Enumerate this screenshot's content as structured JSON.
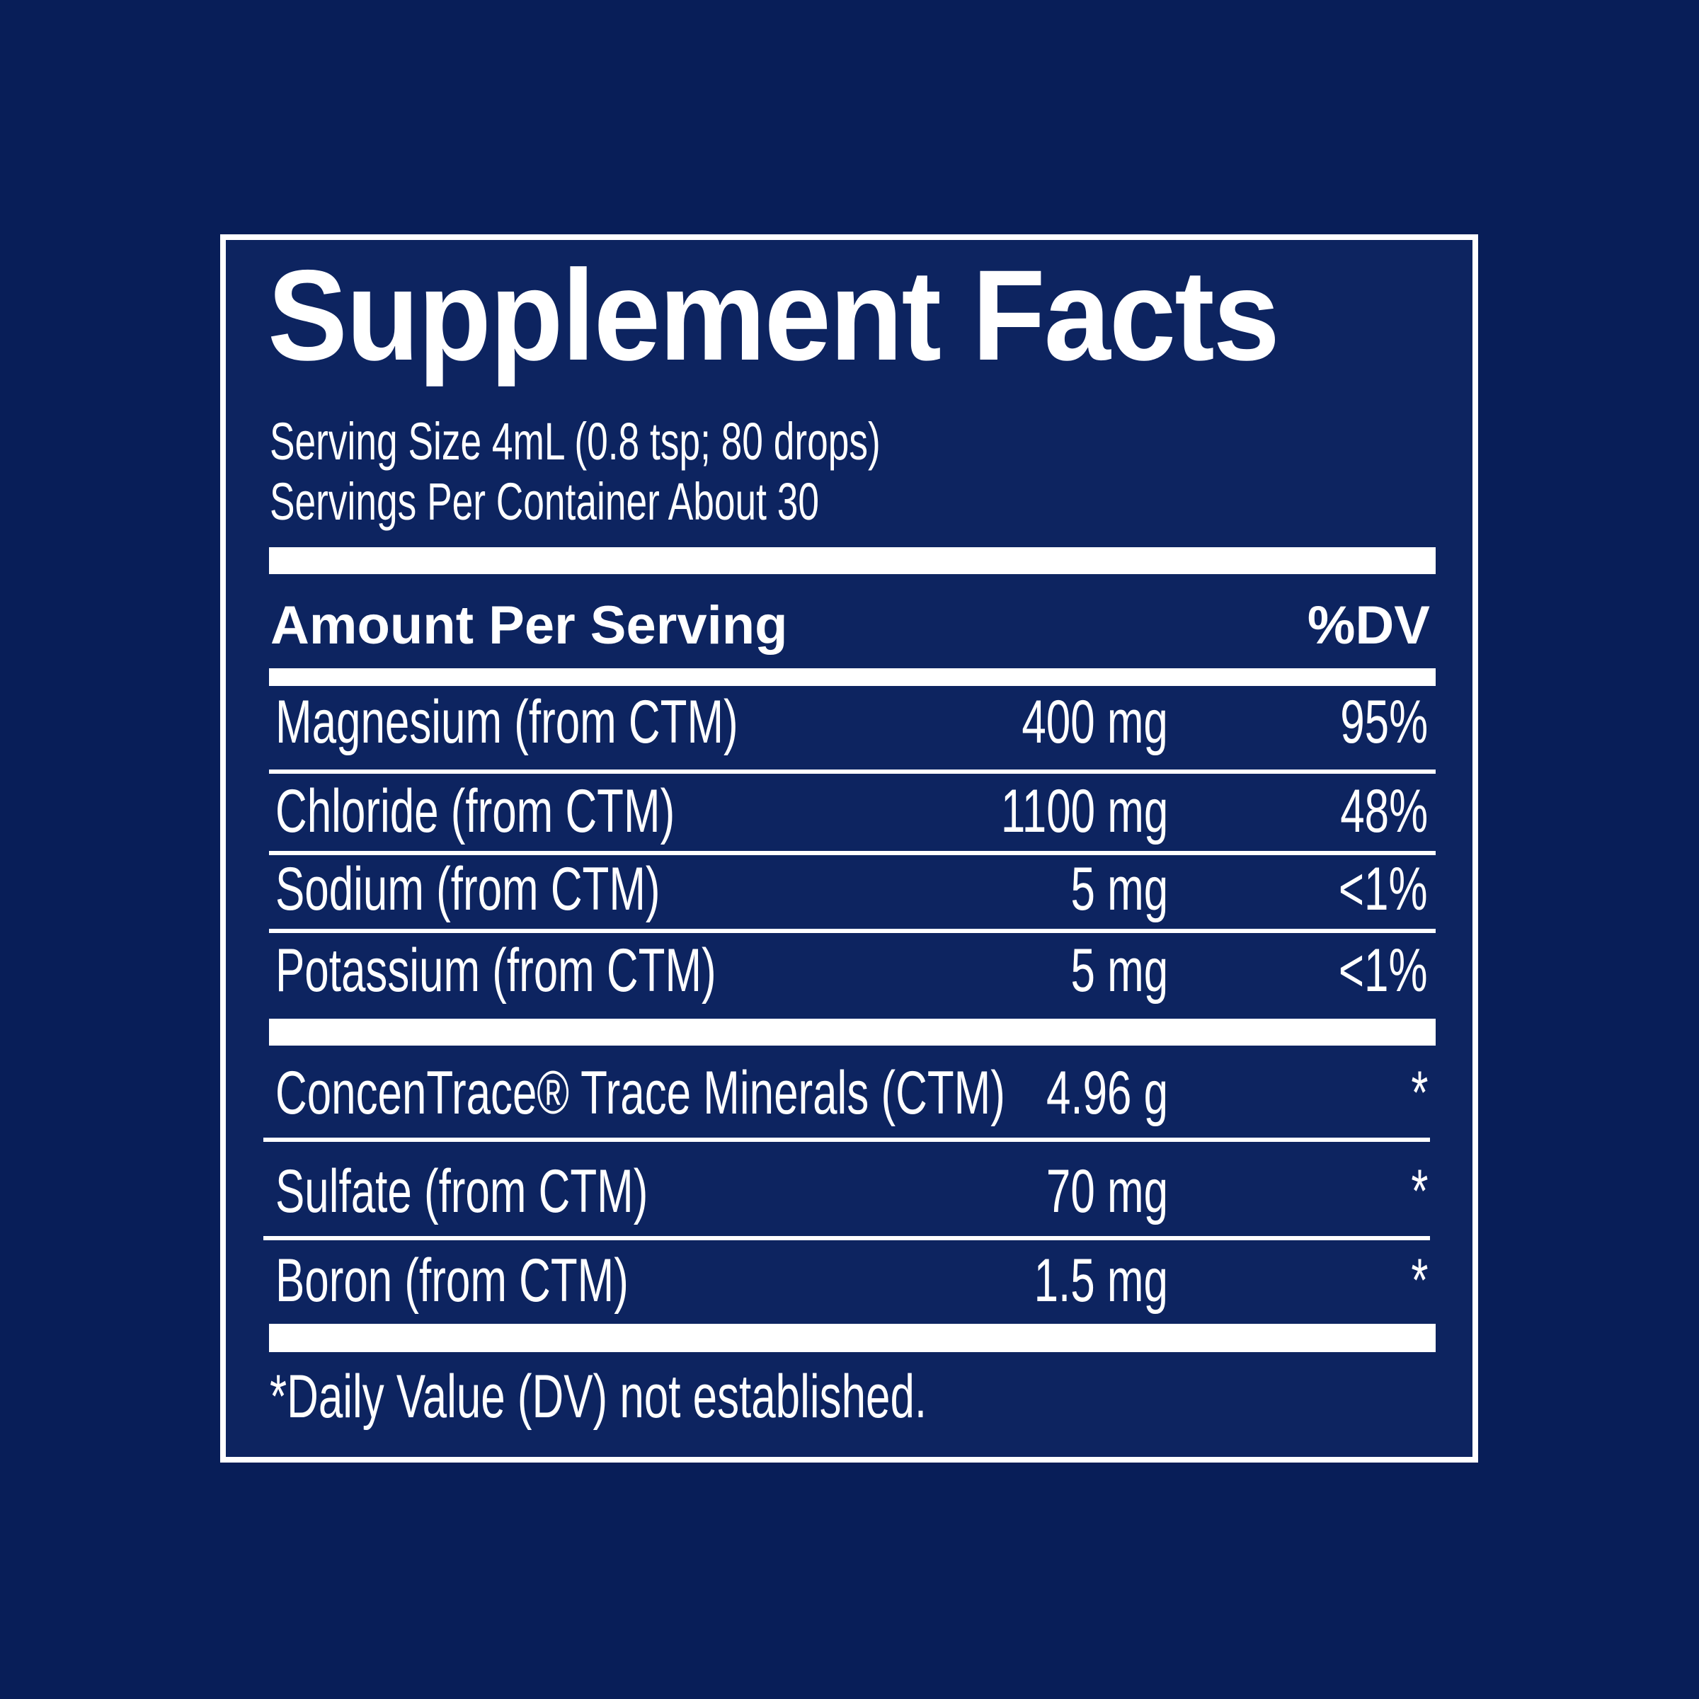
{
  "colors": {
    "background": "#081e58",
    "panel": "#0d2460",
    "text": "#ffffff"
  },
  "title": "Supplement Facts",
  "serving_size": "Serving Size 4mL (0.8 tsp; 80 drops)",
  "servings_per_container": "Servings Per Container About 30",
  "header": {
    "amount": "Amount Per Serving",
    "dv": "%DV"
  },
  "rows": [
    {
      "name": "Magnesium (from CTM)",
      "amount": "400 mg",
      "dv": "95%"
    },
    {
      "name": "Chloride (from CTM)",
      "amount": "1100 mg",
      "dv": "48%"
    },
    {
      "name": "Sodium (from CTM)",
      "amount": "5 mg",
      "dv": "<1%"
    },
    {
      "name": "Potassium (from CTM)",
      "amount": "5 mg",
      "dv": "<1%"
    }
  ],
  "rows2": [
    {
      "name": "ConcenTrace® Trace Minerals (CTM)",
      "amount": "4.96 g",
      "dv": "*"
    },
    {
      "name": "Sulfate (from CTM)",
      "amount": "70 mg",
      "dv": "*"
    },
    {
      "name": "Boron (from CTM)",
      "amount": "1.5 mg",
      "dv": "*"
    }
  ],
  "footnote": "*Daily Value (DV) not established."
}
